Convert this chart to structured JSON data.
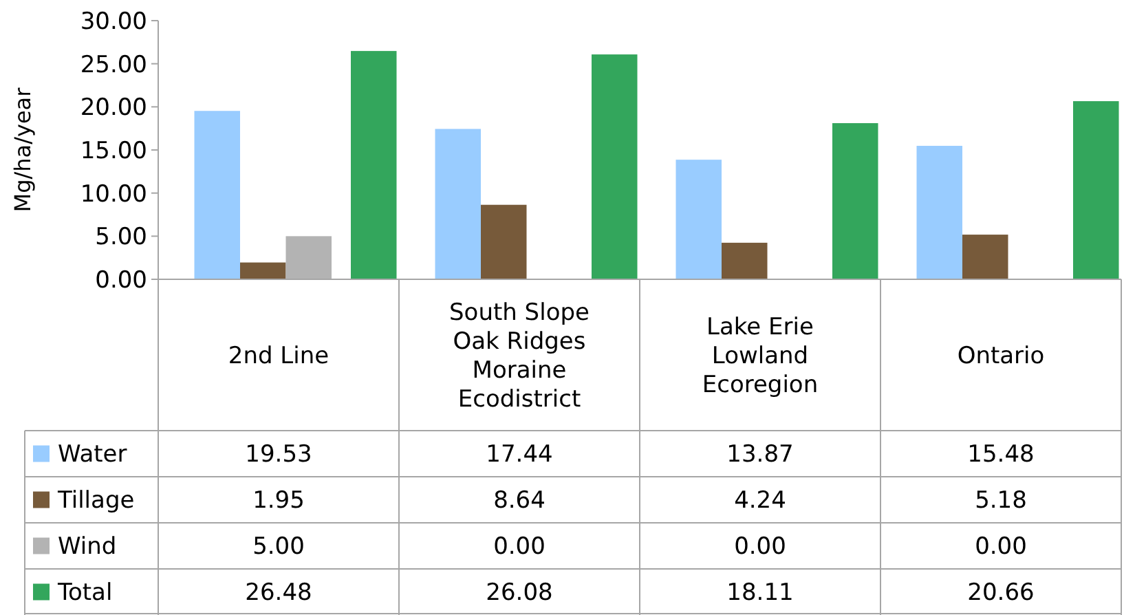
{
  "chart_data": {
    "type": "bar",
    "ylabel": "Mg/ha/year",
    "categories": [
      "2nd Line",
      "South Slope Oak Ridges Moraine Ecodistrict",
      "Lake Erie Lowland Ecoregion",
      "Ontario"
    ],
    "series": [
      {
        "name": "Water",
        "color": "#99ccff",
        "values": [
          19.53,
          17.44,
          13.87,
          15.48
        ],
        "value_labels": [
          "19.53",
          "17.44",
          "13.87",
          "15.48"
        ]
      },
      {
        "name": "Tillage",
        "color": "#775a3a",
        "values": [
          1.95,
          8.64,
          4.24,
          5.18
        ],
        "value_labels": [
          "1.95",
          "8.64",
          "4.24",
          "5.18"
        ]
      },
      {
        "name": "Wind",
        "color": "#b3b3b3",
        "values": [
          5.0,
          0.0,
          0.0,
          0.0
        ],
        "value_labels": [
          "5.00",
          "0.00",
          "0.00",
          "0.00"
        ]
      },
      {
        "name": "Total",
        "color": "#33a65c",
        "values": [
          26.48,
          26.08,
          18.11,
          20.66
        ],
        "value_labels": [
          "26.48",
          "26.08",
          "18.11",
          "20.66"
        ]
      }
    ],
    "ylim": [
      0,
      30
    ],
    "yticks": [
      {
        "value": 0,
        "label": "0.00"
      },
      {
        "value": 5,
        "label": "5.00"
      },
      {
        "value": 10,
        "label": "10.00"
      },
      {
        "value": 15,
        "label": "15.00"
      },
      {
        "value": 20,
        "label": "20.00"
      },
      {
        "value": 25,
        "label": "25.00"
      },
      {
        "value": 30,
        "label": "30.00"
      }
    ],
    "legend": "bottom left"
  }
}
